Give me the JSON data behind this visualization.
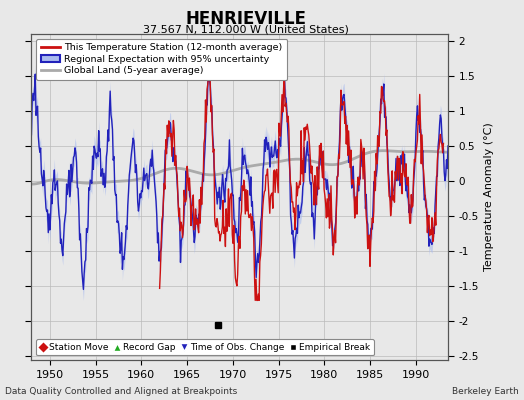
{
  "title": "HENRIEVILLE",
  "subtitle": "37.567 N, 112.000 W (United States)",
  "ylabel": "Temperature Anomaly (°C)",
  "xlabel_note": "Data Quality Controlled and Aligned at Breakpoints",
  "credit": "Berkeley Earth",
  "ylim": [
    -2.55,
    2.1
  ],
  "yticks": [
    -2.5,
    -2.0,
    -1.5,
    -1.0,
    -0.5,
    0.0,
    0.5,
    1.0,
    1.5,
    2.0
  ],
  "xticks": [
    1950,
    1955,
    1960,
    1965,
    1970,
    1975,
    1980,
    1985,
    1990
  ],
  "xlim": [
    1948,
    1993.5
  ],
  "regional_color": "#2222bb",
  "regional_fill_color": "#aabbee",
  "station_color": "#cc1111",
  "global_color": "#aaaaaa",
  "background_color": "#e8e8e8",
  "plot_bg_color": "#e8e8e8",
  "grid_color": "#bbbbbb",
  "empirical_break_year": 1968.4,
  "empirical_break_value": -2.05,
  "station_start_year": 1962.0,
  "station_end_year": 1993.0
}
